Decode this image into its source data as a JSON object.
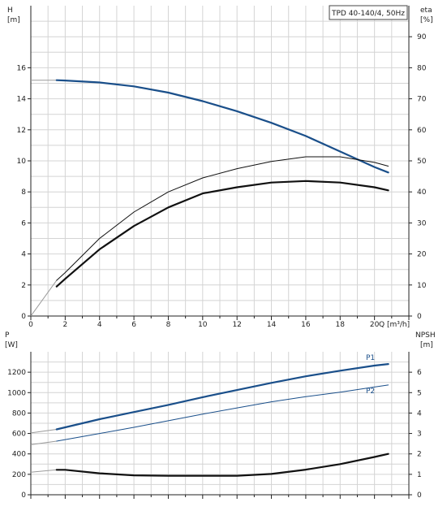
{
  "chart_data": [
    {
      "type": "line",
      "title": "TPD 40-140/4, 50Hz",
      "xlabel": "Q [m³/h]",
      "ylabel_left": "H",
      "ylabel_left_unit": "[m]",
      "ylabel_right": "eta",
      "ylabel_right_unit": "[%]",
      "xlim": [
        0,
        22
      ],
      "ylim_left": [
        0,
        20
      ],
      "ylim_right": [
        0,
        100
      ],
      "xticks": [
        "0",
        "2",
        "4",
        "6",
        "8",
        "10",
        "12",
        "14",
        "16",
        "18",
        "20"
      ],
      "yticks_left": [
        "0",
        "2",
        "4",
        "6",
        "8",
        "10",
        "12",
        "14",
        "16"
      ],
      "yticks_right": [
        "0",
        "10",
        "20",
        "30",
        "40",
        "50",
        "60",
        "70",
        "80",
        "90"
      ],
      "grid": true,
      "series": [
        {
          "axis": "left",
          "color": "#1a4f8a",
          "width": 2.2,
          "x": [
            0,
            1.5,
            2,
            4,
            6,
            8,
            10,
            12,
            14,
            16,
            18,
            20,
            20.8
          ],
          "y": [
            15.2,
            15.2,
            15.18,
            15.05,
            14.8,
            14.4,
            13.85,
            13.2,
            12.45,
            11.6,
            10.6,
            9.6,
            9.25
          ],
          "extrap_until": 1.5
        },
        {
          "axis": "right",
          "color": "#111111",
          "width": 1,
          "x": [
            0,
            1.5,
            2,
            4,
            6,
            8,
            10,
            12,
            14,
            16,
            18,
            20,
            20.8
          ],
          "y": [
            0,
            11.5,
            14,
            25,
            33.5,
            40,
            44.5,
            47.5,
            49.8,
            51.3,
            51.3,
            49.5,
            48.3
          ],
          "extrap_until": 1.5
        },
        {
          "axis": "right",
          "color": "#111111",
          "width": 2.2,
          "x": [
            1.5,
            2,
            4,
            6,
            8,
            10,
            12,
            14,
            16,
            18,
            20,
            20.8
          ],
          "y": [
            9.5,
            12,
            21.5,
            29,
            35,
            39.5,
            41.5,
            43,
            43.5,
            43,
            41.5,
            40.5
          ]
        }
      ]
    },
    {
      "type": "line",
      "xlabel": "",
      "ylabel_left": "P",
      "ylabel_left_unit": "[W]",
      "ylabel_right": "NPSH",
      "ylabel_right_unit": "[m]",
      "xlim": [
        0,
        22
      ],
      "ylim_left": [
        0,
        1400
      ],
      "ylim_right": [
        0,
        7
      ],
      "yticks_left": [
        "0",
        "200",
        "400",
        "600",
        "800",
        "1000",
        "1200"
      ],
      "yticks_right": [
        "0",
        "1",
        "2",
        "3",
        "4",
        "5",
        "6"
      ],
      "grid": true,
      "series": [
        {
          "name": "P1",
          "axis": "left",
          "color": "#1a4f8a",
          "width": 2.2,
          "x": [
            0,
            1.5,
            2,
            4,
            6,
            8,
            10,
            12,
            14,
            16,
            18,
            20,
            20.8
          ],
          "y": [
            605,
            640,
            660,
            740,
            810,
            880,
            955,
            1025,
            1095,
            1160,
            1215,
            1265,
            1280
          ],
          "extrap_until": 1.5
        },
        {
          "name": "P2",
          "axis": "left",
          "color": "#1a4f8a",
          "width": 1,
          "x": [
            0,
            1.5,
            2,
            4,
            6,
            8,
            10,
            12,
            14,
            16,
            18,
            20,
            20.8
          ],
          "y": [
            490,
            525,
            540,
            600,
            660,
            725,
            790,
            850,
            910,
            960,
            1005,
            1055,
            1075
          ],
          "extrap_until": 1.5
        },
        {
          "axis": "right",
          "color": "#111111",
          "width": 2.2,
          "x": [
            0,
            1.5,
            2,
            4,
            6,
            8,
            10,
            12,
            14,
            16,
            18,
            20,
            20.8
          ],
          "y": [
            1.1,
            1.22,
            1.22,
            1.05,
            0.95,
            0.93,
            0.93,
            0.93,
            1.02,
            1.23,
            1.5,
            1.85,
            2.0
          ],
          "extrap_until": 1.5
        }
      ]
    }
  ]
}
